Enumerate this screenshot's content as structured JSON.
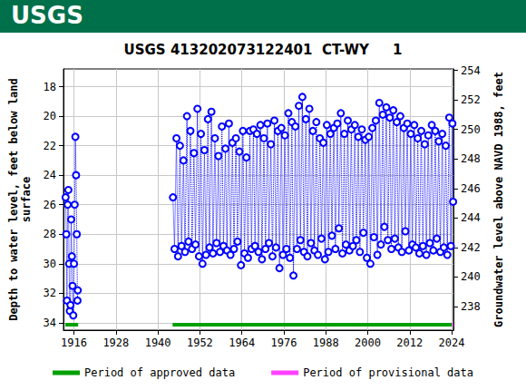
{
  "chart_data": {
    "type": "scatter",
    "header": "USGS",
    "title": "USGS 413202073122401  CT-WY     1",
    "y_label": "Depth to water level, feet below land\nsurface",
    "y2_label": "Groundwater level above NAVD 1988, feet",
    "grid": true,
    "xlim": [
      1913,
      2024.5
    ],
    "xticks": [
      1916,
      1928,
      1940,
      1952,
      1964,
      1976,
      1988,
      2000,
      2012,
      2024
    ],
    "ylim": [
      16.8,
      34.5
    ],
    "yticks": [
      18,
      20,
      22,
      24,
      26,
      28,
      30,
      32,
      34
    ],
    "y2lim": [
      254.1,
      236.4
    ],
    "y2ticks": [
      238,
      240,
      242,
      244,
      246,
      248,
      250,
      252,
      254
    ],
    "series": [
      {
        "name": "Depth to water level",
        "color": "#0000ff",
        "marker": "circle",
        "line_style": "dotted",
        "x": [
          1913.6,
          1913.8,
          1914.0,
          1914.2,
          1914.4,
          1914.6,
          1914.8,
          1915.0,
          1915.2,
          1915.4,
          1915.6,
          1915.8,
          1916.0,
          1916.2,
          1916.4,
          1916.6,
          1916.8,
          1917.0,
          1917.1,
          1930,
          1944.3,
          1944.75,
          1945.3,
          1945.75,
          1946.3,
          1946.75,
          1947.3,
          1947.75,
          1948.3,
          1948.75,
          1949.3,
          1949.75,
          1950.3,
          1950.75,
          1951.3,
          1951.75,
          1952.3,
          1952.75,
          1953.3,
          1953.75,
          1954.3,
          1954.75,
          1955.3,
          1955.75,
          1956.3,
          1956.75,
          1957.3,
          1957.75,
          1958.3,
          1958.75,
          1959.3,
          1959.75,
          1960.3,
          1960.75,
          1961.3,
          1961.75,
          1962.3,
          1962.75,
          1963.3,
          1963.75,
          1964.3,
          1964.75,
          1965.3,
          1965.75,
          1966.3,
          1966.75,
          1967.3,
          1967.75,
          1968.3,
          1968.75,
          1969.3,
          1969.75,
          1970.3,
          1970.75,
          1971.3,
          1971.75,
          1972.3,
          1972.75,
          1973.3,
          1973.75,
          1974.3,
          1974.75,
          1975.3,
          1975.75,
          1976.3,
          1976.75,
          1977.3,
          1977.75,
          1978.3,
          1978.75,
          1979.3,
          1979.75,
          1980.3,
          1980.75,
          1981.3,
          1981.75,
          1982.3,
          1982.75,
          1983.3,
          1983.75,
          1984.3,
          1984.75,
          1985.3,
          1985.75,
          1986.3,
          1986.75,
          1987.3,
          1987.75,
          1988.3,
          1988.75,
          1989.3,
          1989.75,
          1990.3,
          1990.75,
          1991.3,
          1991.75,
          1992.3,
          1992.75,
          1993.3,
          1993.75,
          1994.3,
          1994.75,
          1995.3,
          1995.75,
          1996.3,
          1996.75,
          1997.3,
          1997.75,
          1998.3,
          1998.75,
          1999.3,
          1999.75,
          2000.3,
          2000.75,
          2001.3,
          2001.75,
          2002.3,
          2002.75,
          2003.3,
          2003.75,
          2004.3,
          2004.75,
          2005.3,
          2005.75,
          2006.3,
          2006.75,
          2007.3,
          2007.75,
          2008.3,
          2008.75,
          2009.3,
          2009.75,
          2010.3,
          2010.75,
          2011.3,
          2011.75,
          2012.3,
          2012.75,
          2013.3,
          2013.75,
          2014.3,
          2014.75,
          2015.3,
          2015.75,
          2016.3,
          2016.75,
          2017.3,
          2017.75,
          2018.3,
          2018.75,
          2019.3,
          2019.75,
          2020.3,
          2020.75,
          2021.3,
          2021.75,
          2022.3,
          2022.75,
          2023.3,
          2023.75,
          2024.2,
          2024.4
        ],
        "values": [
          25.5,
          28,
          32.5,
          26,
          25,
          30,
          33.2,
          32.8,
          27,
          29.5,
          31.5,
          33.5,
          30,
          26,
          21.4,
          24,
          28,
          32.5,
          31.8,
          null,
          25.5,
          29,
          21.5,
          29.5,
          22,
          28.8,
          23,
          29.2,
          20,
          28.5,
          21,
          29,
          22.5,
          28.7,
          19.5,
          29.5,
          21.2,
          30,
          22.3,
          29.4,
          20.2,
          28.9,
          19.7,
          29.3,
          21.5,
          28.6,
          22.7,
          29.2,
          20.7,
          28.8,
          22.2,
          29.1,
          20.5,
          29.4,
          21.8,
          29.0,
          21.5,
          28.5,
          22.4,
          30.1,
          21.0,
          29.3,
          22.8,
          29.6,
          21.0,
          29.0,
          20.9,
          28.8,
          21.2,
          29.2,
          20.6,
          29.7,
          21.5,
          29.0,
          20.5,
          28.6,
          21.9,
          29.5,
          20.3,
          28.9,
          21.0,
          30.3,
          20.8,
          29.4,
          21.3,
          29.0,
          19.8,
          29.6,
          20.4,
          30.8,
          20.7,
          29.0,
          19.3,
          28.4,
          18.7,
          29.2,
          20.2,
          29.5,
          19.5,
          28.6,
          21.0,
          29.1,
          20.4,
          29.4,
          21.5,
          28.3,
          21.8,
          29.7,
          20.6,
          29.2,
          21.2,
          28.1,
          20.8,
          29.0,
          20.5,
          27.6,
          19.8,
          29.3,
          21.2,
          28.7,
          20.3,
          29.1,
          20.9,
          28.8,
          20.6,
          28.4,
          21.4,
          29.2,
          20.9,
          27.9,
          21.6,
          29.6,
          21.4,
          30.0,
          20.8,
          28.2,
          20.3,
          29.4,
          19.1,
          28.7,
          19.9,
          27.5,
          19.4,
          28.4,
          20.1,
          29.0,
          19.6,
          28.3,
          20.4,
          28.9,
          20.0,
          29.2,
          20.8,
          27.8,
          20.5,
          29.1,
          21.2,
          28.7,
          20.6,
          28.9,
          21.5,
          29.3,
          21.0,
          28.8,
          21.9,
          29.4,
          21.3,
          28.6,
          20.6,
          29.1,
          21.0,
          28.3,
          21.7,
          29.2,
          21.2,
          28.9,
          22.0,
          29.4,
          20.1,
          28.8,
          20.5,
          25.8
        ]
      }
    ],
    "periods": [
      {
        "name": "Period of approved data",
        "color": "#00a000",
        "ranges": [
          [
            1913.5,
            1917.2
          ],
          [
            1944.2,
            2024.1
          ]
        ]
      },
      {
        "name": "Period of provisional data",
        "color": "#ff40ff",
        "ranges": [
          [
            2024.1,
            2024.5
          ]
        ]
      }
    ]
  }
}
